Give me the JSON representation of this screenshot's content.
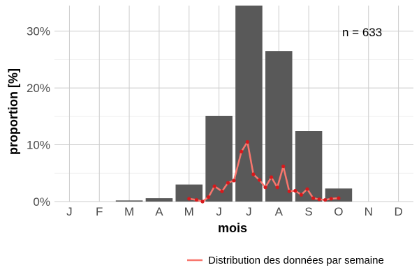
{
  "chart_data": {
    "type": "bar",
    "title": "",
    "xlabel": "mois",
    "ylabel": "proportion [%]",
    "ylim": [
      0,
      34.5
    ],
    "y_ticks": [
      0,
      10,
      20,
      30
    ],
    "y_tick_labels": [
      "0%",
      "10%",
      "20%",
      "30%"
    ],
    "categories": [
      "J",
      "F",
      "M",
      "A",
      "M",
      "J",
      "J",
      "A",
      "S",
      "O",
      "N",
      "D"
    ],
    "grid": true,
    "annotation": "n = 633",
    "series": [
      {
        "type": "bar",
        "values": [
          0,
          0,
          0.2,
          0.6,
          3.0,
          15.1,
          34.5,
          26.5,
          12.4,
          2.3,
          0,
          0
        ],
        "color": "#595959"
      },
      {
        "type": "line",
        "name": "Distribution des données par semaine",
        "color": "#f8766d",
        "point_color": "#d7191c",
        "x": [
          5.0,
          5.25,
          5.45,
          5.65,
          5.85,
          6.1,
          6.3,
          6.5,
          6.75,
          6.95,
          7.15,
          7.35,
          7.55,
          7.75,
          7.95,
          8.15,
          8.35,
          8.55,
          8.75,
          8.95,
          9.15,
          9.35,
          9.55,
          9.75,
          10.0
        ],
        "y": [
          0.5,
          0.3,
          0.0,
          0.8,
          2.7,
          1.8,
          3.3,
          3.7,
          8.8,
          10.5,
          4.8,
          3.8,
          2.5,
          4.3,
          2.5,
          6.2,
          1.8,
          1.9,
          1.2,
          2.2,
          0.6,
          0.4,
          0.3,
          0.5,
          0.6
        ]
      }
    ],
    "legend": {
      "position": "bottom-right",
      "entries": [
        "Distribution des données par semaine"
      ]
    }
  }
}
